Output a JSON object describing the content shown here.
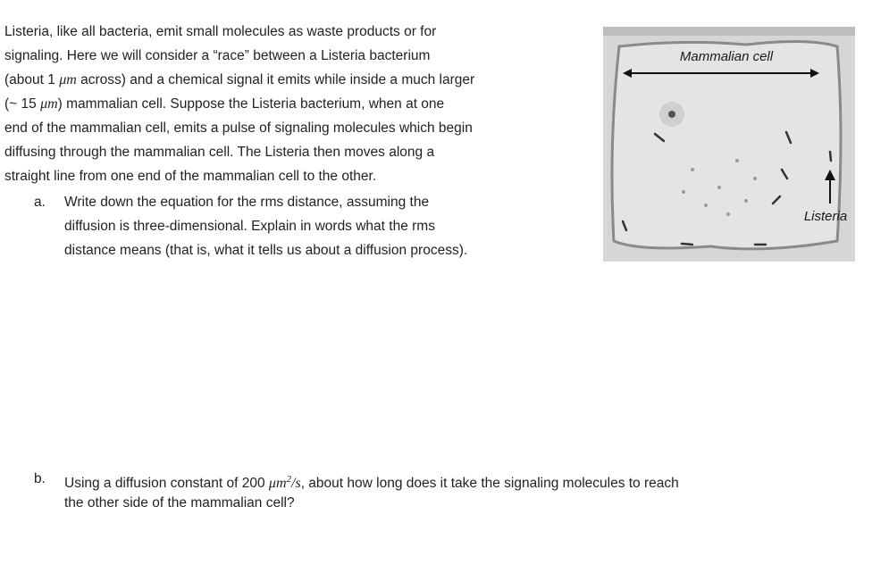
{
  "intro": {
    "lines": [
      [
        {
          "text": "Listeria, like all bacteria, emit small molecules as waste products or for"
        }
      ],
      [
        {
          "text": "signaling.  Here we will consider a “race” between a Listeria bacterium"
        }
      ],
      [
        {
          "text": "(about 1 "
        },
        {
          "math": "μm"
        },
        {
          "text": " across) and a chemical signal it emits while inside a much larger"
        }
      ],
      [
        {
          "text": "(~ 15 "
        },
        {
          "math": "μm"
        },
        {
          "text": ") mammalian cell.  Suppose the Listeria bacterium, when at one"
        }
      ],
      [
        {
          "text": "end of the mammalian cell, emits a pulse of signaling molecules which begin"
        }
      ],
      [
        {
          "text": "diffusing through the mammalian cell.  The Listeria then moves along a"
        }
      ],
      [
        {
          "text": "straight line from one end of the mammalian cell to the other."
        }
      ]
    ]
  },
  "questions": [
    {
      "marker": "a.",
      "lines": [
        [
          {
            "text": "Write down the equation for the rms distance, assuming the"
          }
        ],
        [
          {
            "text": "diffusion is three-dimensional.  Explain in words what the rms"
          }
        ],
        [
          {
            "text": "distance means (that is, what it tells us about a diffusion process)."
          }
        ]
      ]
    },
    {
      "marker": "b.",
      "lines": [
        [
          {
            "text": "Using a diffusion constant of 200 "
          },
          {
            "math": "μm"
          },
          {
            "sup": "2"
          },
          {
            "math": "/s"
          },
          {
            "text": ", about how long does it take the signaling molecules to reach"
          }
        ],
        [
          {
            "text": "the other side of the mammalian cell?"
          }
        ]
      ]
    }
  ],
  "figure": {
    "top_label": "Mammalian cell",
    "side_label": "Listeria"
  }
}
